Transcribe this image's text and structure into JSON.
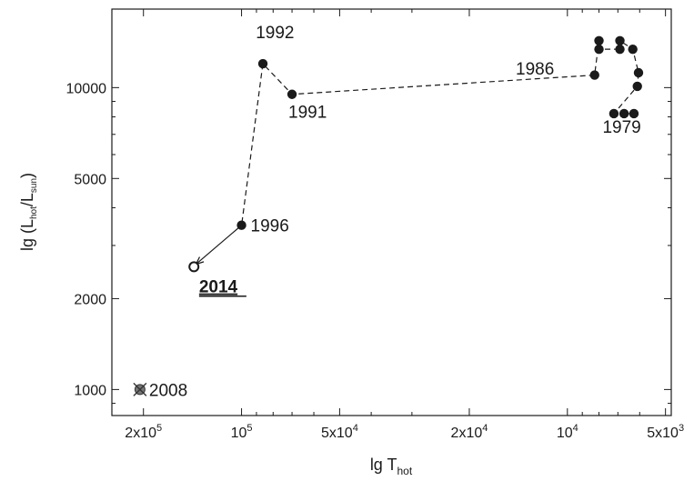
{
  "chart_data": {
    "type": "scatter",
    "title": "",
    "xlabel": "lg T",
    "xlabel_sub": "hot",
    "ylabel": "lg (L",
    "ylabel_sub1": "hot",
    "ylabel_mid": "/L",
    "ylabel_sub2": "sun",
    "ylabel_end": ")",
    "x_scale": "log",
    "x_reversed": true,
    "y_scale": "log",
    "xlim": [
      250000,
      4800
    ],
    "ylim": [
      820,
      18200
    ],
    "grid": false,
    "x_ticks": [
      {
        "value": 200000,
        "mant": "2x10",
        "exp": "5"
      },
      {
        "value": 100000,
        "mant": "10",
        "exp": "5"
      },
      {
        "value": 50000,
        "mant": "5x10",
        "exp": "4"
      },
      {
        "value": 20000,
        "mant": "2x10",
        "exp": "4"
      },
      {
        "value": 10000,
        "mant": "10",
        "exp": "4"
      },
      {
        "value": 5000,
        "mant": "5x10",
        "exp": "3"
      }
    ],
    "y_ticks": [
      {
        "value": 1000,
        "label": "1000"
      },
      {
        "value": 2000,
        "label": "2000"
      },
      {
        "value": 5000,
        "label": "5000"
      },
      {
        "value": 10000,
        "label": "10000"
      }
    ],
    "track": [
      {
        "T": 6250,
        "L": 8200
      },
      {
        "T": 6700,
        "L": 8200
      },
      {
        "T": 7200,
        "L": 8200
      },
      {
        "T": 6100,
        "L": 10100
      },
      {
        "T": 6050,
        "L": 11200
      },
      {
        "T": 6300,
        "L": 13400
      },
      {
        "T": 6900,
        "L": 14300
      },
      {
        "T": 6900,
        "L": 13400
      },
      {
        "T": 8000,
        "L": 13400
      },
      {
        "T": 8000,
        "L": 14300
      },
      {
        "T": 8250,
        "L": 11000
      },
      {
        "T": 70000,
        "L": 9500
      },
      {
        "T": 86000,
        "L": 12000
      },
      {
        "T": 100000,
        "L": 3500
      }
    ],
    "arrow": {
      "from": {
        "T": 100000,
        "L": 3500
      },
      "to": {
        "T": 138000,
        "L": 2600
      }
    },
    "open_point": {
      "T": 140000,
      "L": 2550
    },
    "cross_point": {
      "T": 205000,
      "L": 1000
    },
    "labels": [
      {
        "text": "1979",
        "T": 7800,
        "L": 7450,
        "dx": 0
      },
      {
        "text": "1986",
        "T": 10050,
        "L": 11600,
        "dx": -56
      },
      {
        "text": "1991",
        "T": 70000,
        "L": 8350,
        "dx": -4
      },
      {
        "text": "1992",
        "T": 87000,
        "L": 15300,
        "dx": -6
      },
      {
        "text": "1996",
        "T": 100000,
        "L": 3500,
        "dx": 10
      },
      {
        "text": "2008",
        "T": 205000,
        "L": 1000,
        "dx": 10
      },
      {
        "text": "2014",
        "T": 135000,
        "L": 2200,
        "dx": 0,
        "bold": true
      }
    ]
  }
}
